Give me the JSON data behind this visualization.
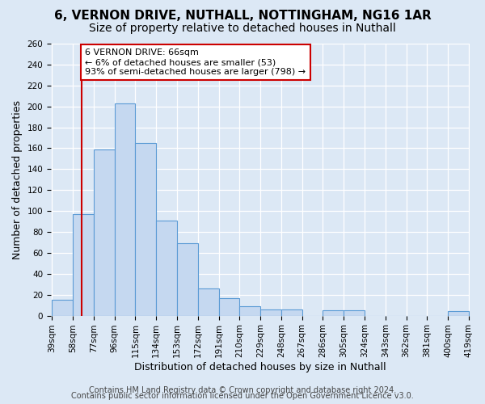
{
  "title_line1": "6, VERNON DRIVE, NUTHALL, NOTTINGHAM, NG16 1AR",
  "title_line2": "Size of property relative to detached houses in Nuthall",
  "xlabel": "Distribution of detached houses by size in Nuthall",
  "ylabel": "Number of detached properties",
  "bar_edges": [
    39,
    58,
    77,
    96,
    115,
    134,
    153,
    172,
    191,
    210,
    229,
    248,
    267,
    286,
    305,
    324,
    343,
    362,
    381,
    400,
    419
  ],
  "bar_heights": [
    15,
    97,
    159,
    203,
    165,
    91,
    69,
    26,
    17,
    9,
    6,
    6,
    0,
    5,
    5,
    0,
    0,
    0,
    0,
    4
  ],
  "bar_color": "#c5d8f0",
  "bar_edge_color": "#5b9bd5",
  "vline_color": "#cc0000",
  "vline_x": 66,
  "annotation_text": "6 VERNON DRIVE: 66sqm\n← 6% of detached houses are smaller (53)\n93% of semi-detached houses are larger (798) →",
  "annotation_box_color": "#ffffff",
  "annotation_box_edge": "#cc0000",
  "ylim": [
    0,
    260
  ],
  "yticks": [
    0,
    20,
    40,
    60,
    80,
    100,
    120,
    140,
    160,
    180,
    200,
    220,
    240,
    260
  ],
  "bin_labels": [
    "39sqm",
    "58sqm",
    "77sqm",
    "96sqm",
    "115sqm",
    "134sqm",
    "153sqm",
    "172sqm",
    "191sqm",
    "210sqm",
    "229sqm",
    "248sqm",
    "267sqm",
    "286sqm",
    "305sqm",
    "324sqm",
    "343sqm",
    "362sqm",
    "381sqm",
    "400sqm",
    "419sqm"
  ],
  "footer_line1": "Contains HM Land Registry data © Crown copyright and database right 2024.",
  "footer_line2": "Contains public sector information licensed under the Open Government Licence v3.0.",
  "background_color": "#dce8f5",
  "plot_background": "#dce8f5",
  "grid_color": "#ffffff",
  "title_fontsize": 11,
  "subtitle_fontsize": 10,
  "axis_label_fontsize": 9,
  "tick_fontsize": 7.5,
  "footer_fontsize": 7
}
